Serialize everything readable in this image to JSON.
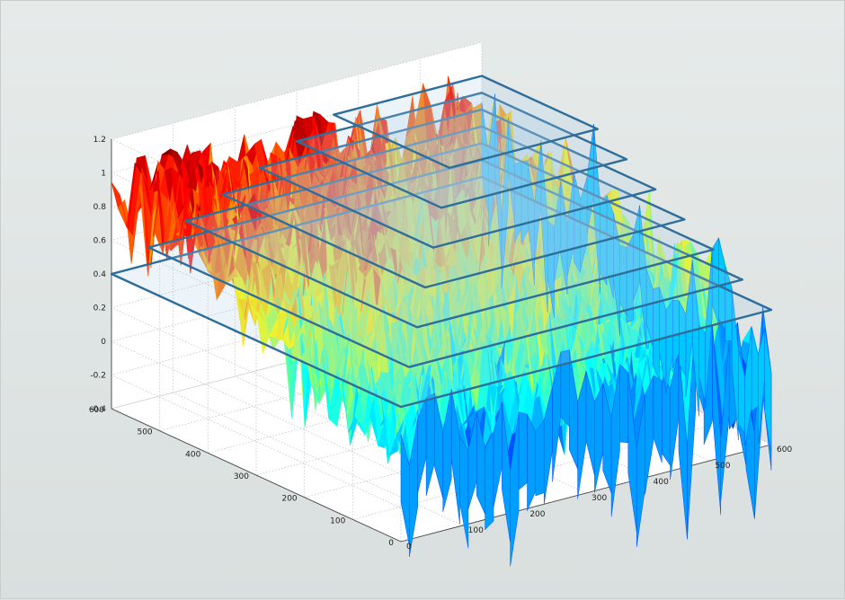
{
  "chart_data": {
    "type": "surface",
    "title": "",
    "xlabel": "",
    "ylabel": "",
    "zlabel": "",
    "xlim": [
      0,
      600
    ],
    "ylim": [
      0,
      600
    ],
    "zlim": [
      -0.4,
      1.2
    ],
    "x_ticks": [
      "0",
      "100",
      "200",
      "300",
      "400",
      "500",
      "600"
    ],
    "y_ticks": [
      "0",
      "100",
      "200",
      "300",
      "400",
      "500",
      "600"
    ],
    "z_ticks": [
      "-0.4",
      "-0.2",
      "0",
      "0.2",
      "0.4",
      "0.6",
      "0.8",
      "1",
      "1.2"
    ],
    "grid": true,
    "colormap": "jet",
    "surface_value_range": [
      -0.3,
      1.05
    ],
    "threshold_planes": [
      {
        "level": 0.4,
        "x_range": [
          0,
          600
        ],
        "y_range": [
          0,
          600
        ]
      },
      {
        "level": 0.5,
        "x_range": [
          60,
          600
        ],
        "y_range": [
          60,
          600
        ]
      },
      {
        "level": 0.6,
        "x_range": [
          120,
          600
        ],
        "y_range": [
          120,
          600
        ]
      },
      {
        "level": 0.7,
        "x_range": [
          180,
          600
        ],
        "y_range": [
          180,
          600
        ]
      },
      {
        "level": 0.8,
        "x_range": [
          240,
          600
        ],
        "y_range": [
          240,
          600
        ]
      },
      {
        "level": 0.9,
        "x_range": [
          300,
          600
        ],
        "y_range": [
          300,
          600
        ]
      },
      {
        "level": 1.0,
        "x_range": [
          360,
          600
        ],
        "y_range": [
          360,
          600
        ]
      }
    ],
    "plane_colors": {
      "edge": "#2f6e9a",
      "fill": "#a9cde6"
    }
  }
}
